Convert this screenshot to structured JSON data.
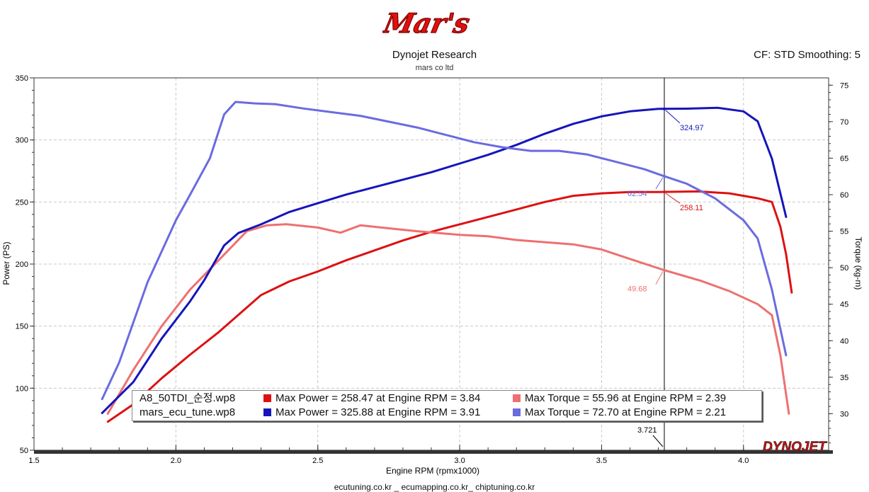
{
  "header": {
    "logo_text": "Mar's",
    "title": "Dynojet Research",
    "subtitle": "mars co ltd",
    "settings": "CF: STD Smoothing: 5"
  },
  "footer": {
    "text": "ecutuning.co.kr _ ecumapping.co.kr_ chiptuning.co.kr"
  },
  "brand": {
    "watermark": "DYNOJET"
  },
  "chart_data": {
    "type": "line",
    "xlabel": "Engine RPM (rpmx1000)",
    "ylabel_left": "Power (PS)",
    "ylabel_right": "Torque (kg-m)",
    "xlim": [
      1.5,
      4.3
    ],
    "ylim_left": [
      50,
      350
    ],
    "ylim_right": [
      25,
      76
    ],
    "x_ticks": [
      "1.5",
      "2.0",
      "2.5",
      "3.0",
      "3.5",
      "4.0"
    ],
    "y_ticks_left": [
      "50",
      "100",
      "150",
      "200",
      "250",
      "300",
      "350"
    ],
    "y_ticks_right": [
      "30",
      "35",
      "40",
      "45",
      "50",
      "55",
      "60",
      "65",
      "70",
      "75"
    ],
    "grid": true,
    "cursor": {
      "x": 3.721,
      "label": "3.721"
    },
    "series": [
      {
        "name": "A8_50TDI_순정.wp8 Power",
        "axis": "left",
        "color": "#dd1111",
        "points": [
          [
            1.76,
            73
          ],
          [
            1.85,
            87
          ],
          [
            1.95,
            108
          ],
          [
            2.05,
            127
          ],
          [
            2.15,
            145
          ],
          [
            2.2,
            155
          ],
          [
            2.3,
            175
          ],
          [
            2.4,
            186
          ],
          [
            2.5,
            194
          ],
          [
            2.6,
            203
          ],
          [
            2.7,
            211
          ],
          [
            2.8,
            219
          ],
          [
            2.9,
            226
          ],
          [
            3.0,
            232
          ],
          [
            3.1,
            238
          ],
          [
            3.2,
            244
          ],
          [
            3.3,
            250
          ],
          [
            3.4,
            255
          ],
          [
            3.5,
            257
          ],
          [
            3.6,
            258
          ],
          [
            3.7,
            258
          ],
          [
            3.84,
            258.5
          ],
          [
            3.95,
            257
          ],
          [
            4.05,
            253
          ],
          [
            4.1,
            250
          ],
          [
            4.13,
            230
          ],
          [
            4.15,
            208
          ],
          [
            4.17,
            177
          ]
        ]
      },
      {
        "name": "A8_50TDI_순정.wp8 Torque",
        "axis": "right",
        "color": "#ee7070",
        "points": [
          [
            1.76,
            30
          ],
          [
            1.85,
            36
          ],
          [
            1.95,
            42
          ],
          [
            2.05,
            47
          ],
          [
            2.15,
            51
          ],
          [
            2.25,
            55
          ],
          [
            2.32,
            55.8
          ],
          [
            2.39,
            55.96
          ],
          [
            2.5,
            55.5
          ],
          [
            2.58,
            54.8
          ],
          [
            2.65,
            55.8
          ],
          [
            2.75,
            55.4
          ],
          [
            2.85,
            55
          ],
          [
            3.0,
            54.5
          ],
          [
            3.1,
            54.3
          ],
          [
            3.2,
            53.8
          ],
          [
            3.3,
            53.5
          ],
          [
            3.4,
            53.2
          ],
          [
            3.5,
            52.5
          ],
          [
            3.6,
            51.2
          ],
          [
            3.72,
            49.68
          ],
          [
            3.85,
            48.2
          ],
          [
            3.95,
            46.8
          ],
          [
            4.05,
            45
          ],
          [
            4.1,
            43.5
          ],
          [
            4.13,
            38
          ],
          [
            4.16,
            30
          ]
        ]
      },
      {
        "name": "mars_ecu_tune.wp8 Power",
        "axis": "left",
        "color": "#1515bb",
        "points": [
          [
            1.74,
            80
          ],
          [
            1.85,
            105
          ],
          [
            1.95,
            140
          ],
          [
            2.05,
            170
          ],
          [
            2.1,
            187
          ],
          [
            2.17,
            215
          ],
          [
            2.22,
            225
          ],
          [
            2.3,
            232
          ],
          [
            2.4,
            242
          ],
          [
            2.5,
            249
          ],
          [
            2.6,
            256
          ],
          [
            2.7,
            262
          ],
          [
            2.8,
            268
          ],
          [
            2.9,
            274
          ],
          [
            3.0,
            281
          ],
          [
            3.1,
            288
          ],
          [
            3.2,
            296
          ],
          [
            3.3,
            305
          ],
          [
            3.4,
            313
          ],
          [
            3.5,
            319
          ],
          [
            3.6,
            323
          ],
          [
            3.7,
            325
          ],
          [
            3.8,
            325.2
          ],
          [
            3.91,
            325.88
          ],
          [
            4.0,
            323
          ],
          [
            4.05,
            315
          ],
          [
            4.1,
            285
          ],
          [
            4.15,
            238
          ]
        ]
      },
      {
        "name": "mars_ecu_tune.wp8 Torque",
        "axis": "right",
        "color": "#6b6be0",
        "points": [
          [
            1.74,
            32
          ],
          [
            1.8,
            37
          ],
          [
            1.9,
            48
          ],
          [
            2.0,
            56.5
          ],
          [
            2.05,
            60
          ],
          [
            2.12,
            65
          ],
          [
            2.17,
            71
          ],
          [
            2.21,
            72.7
          ],
          [
            2.28,
            72.5
          ],
          [
            2.35,
            72.4
          ],
          [
            2.45,
            71.8
          ],
          [
            2.55,
            71.3
          ],
          [
            2.65,
            70.8
          ],
          [
            2.75,
            70
          ],
          [
            2.85,
            69.2
          ],
          [
            2.95,
            68.2
          ],
          [
            3.05,
            67.2
          ],
          [
            3.15,
            66.5
          ],
          [
            3.25,
            66
          ],
          [
            3.35,
            66
          ],
          [
            3.45,
            65.5
          ],
          [
            3.55,
            64.5
          ],
          [
            3.65,
            63.5
          ],
          [
            3.72,
            62.54
          ],
          [
            3.8,
            61.5
          ],
          [
            3.9,
            59.5
          ],
          [
            4.0,
            56.5
          ],
          [
            4.05,
            54
          ],
          [
            4.1,
            47
          ],
          [
            4.15,
            38
          ]
        ]
      }
    ],
    "markers": [
      {
        "label": "324.97",
        "axis": "left",
        "x": 3.721,
        "y": 324.97,
        "color": "#1515bb"
      },
      {
        "label": "258.11",
        "axis": "left",
        "x": 3.721,
        "y": 258.11,
        "color": "#dd1111"
      },
      {
        "label": "62.54",
        "axis": "right",
        "x": 3.721,
        "y": 62.54,
        "color": "#6b6be0"
      },
      {
        "label": "49.68",
        "axis": "right",
        "x": 3.721,
        "y": 49.68,
        "color": "#ee7070"
      }
    ]
  },
  "legend": {
    "rows": [
      {
        "file": "A8_50TDI_순정.wp8",
        "power_color": "#dd1111",
        "power_text": "Max Power = 258.47 at Engine RPM = 3.84",
        "torque_color": "#ee7070",
        "torque_text": "Max Torque = 55.96 at Engine RPM = 2.39"
      },
      {
        "file": "mars_ecu_tune.wp8",
        "power_color": "#1515bb",
        "power_text": "Max Power = 325.88 at Engine RPM = 3.91",
        "torque_color": "#6b6be0",
        "torque_text": "Max Torque = 72.70 at Engine RPM = 2.21"
      }
    ]
  }
}
